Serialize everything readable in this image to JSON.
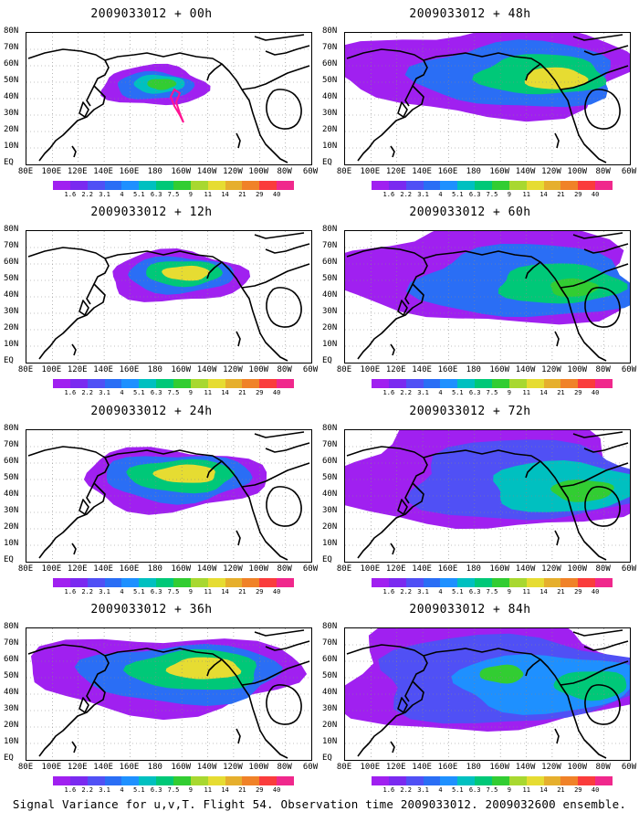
{
  "panels": [
    {
      "title": "2009033012 + 00h",
      "lead": "00h"
    },
    {
      "title": "2009033012 + 12h",
      "lead": "12h"
    },
    {
      "title": "2009033012 + 24h",
      "lead": "24h"
    },
    {
      "title": "2009033012 + 36h",
      "lead": "36h"
    },
    {
      "title": "2009033012 + 48h",
      "lead": "48h"
    },
    {
      "title": "2009033012 + 60h",
      "lead": "60h"
    },
    {
      "title": "2009033012 + 72h",
      "lead": "72h"
    },
    {
      "title": "2009033012 + 84h",
      "lead": "84h"
    }
  ],
  "latitude_labels": [
    "80N",
    "70N",
    "60N",
    "50N",
    "40N",
    "30N",
    "20N",
    "10N",
    "EQ"
  ],
  "longitude_labels": [
    "80E",
    "100E",
    "120E",
    "140E",
    "160E",
    "180",
    "160W",
    "140W",
    "120W",
    "100W",
    "80W",
    "60W"
  ],
  "colorbar": {
    "ticks": [
      "1.6",
      "2.2",
      "3.1",
      "4",
      "5.1",
      "6.3",
      "7.5",
      "9",
      "11",
      "14",
      "21",
      "29",
      "40"
    ],
    "colors": [
      "#a020f0",
      "#7a2af0",
      "#5050f5",
      "#2a6ef5",
      "#1e90ff",
      "#00c0c0",
      "#00c878",
      "#32cd32",
      "#a8d830",
      "#e6dc32",
      "#e6af2d",
      "#f08228",
      "#fa3c3c",
      "#f0288c"
    ]
  },
  "caption": "Signal Variance for u,v,T. Flight 54. Observation time 2009033012. 2009032600 ensemble."
}
